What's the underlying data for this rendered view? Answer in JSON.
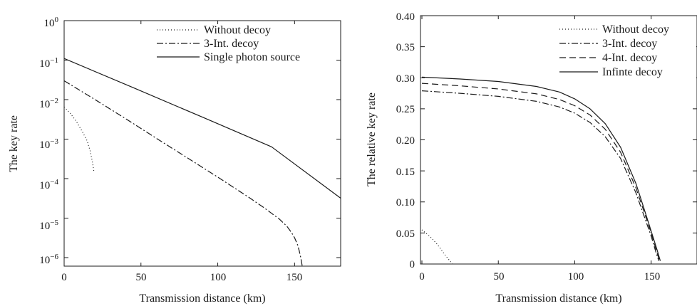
{
  "chart_data": [
    {
      "type": "line",
      "title": "",
      "xlabel": "Transmission distance (km)",
      "ylabel": "The key rate",
      "xlim": [
        0,
        180
      ],
      "ylim": [
        1e-06,
        1
      ],
      "yscale": "log",
      "xticks": [
        "0",
        "50",
        "100",
        "150"
      ],
      "yticks": [
        {
          "base": "10",
          "exp": "0"
        },
        {
          "base": "10",
          "exp": "−1"
        },
        {
          "base": "10",
          "exp": "−2"
        },
        {
          "base": "10",
          "exp": "−3"
        },
        {
          "base": "10",
          "exp": "−4"
        },
        {
          "base": "10",
          "exp": "−5"
        },
        {
          "base": "10",
          "exp": "−6"
        }
      ],
      "legend_position": "top-right",
      "series": [
        {
          "name": "Without decoy",
          "style": "dotted",
          "x": [
            0,
            4,
            8,
            12,
            15,
            17,
            18.5,
            19.5
          ],
          "y": [
            0.0065,
            0.0045,
            0.0028,
            0.0015,
            0.0009,
            0.0005,
            0.00025,
            0.00014
          ]
        },
        {
          "name": "3-Int. decoy",
          "style": "dashdot",
          "x": [
            0,
            20,
            40,
            60,
            80,
            100,
            120,
            130,
            140,
            145,
            148,
            150,
            152,
            153,
            154,
            155
          ],
          "y": [
            0.03,
            0.0101,
            0.0033,
            0.00105,
            0.00034,
            0.000109,
            3.4e-05,
            1.85e-05,
            9.5e-06,
            6.2e-06,
            4.3e-06,
            3.2e-06,
            2.1e-06,
            1.5e-06,
            1e-06,
            5.5e-07
          ]
        },
        {
          "name": "Single photon source",
          "style": "solid",
          "x": [
            0,
            45,
            90,
            135,
            180
          ],
          "y": [
            0.11,
            0.0201,
            0.0036,
            0.00064,
            3.2e-05
          ]
        }
      ]
    },
    {
      "type": "line",
      "title": "",
      "xlabel": "Transmission distance (km)",
      "ylabel": "The relative key rate",
      "xlim": [
        0,
        180
      ],
      "ylim": [
        0,
        0.4
      ],
      "xticks": [
        "0",
        "50",
        "100",
        "150"
      ],
      "yticks": [
        "0",
        "0.05",
        "0.10",
        "0.15",
        "0.20",
        "0.25",
        "0.30",
        "0.35",
        "0.40"
      ],
      "legend_position": "top-right",
      "series": [
        {
          "name": "Without decoy",
          "style": "dotted",
          "x": [
            0,
            5,
            10,
            15,
            18,
            20
          ],
          "y": [
            0.055,
            0.045,
            0.032,
            0.015,
            0.006,
            0.0
          ]
        },
        {
          "name": "3-Int. decoy",
          "style": "dashdot",
          "x": [
            0,
            25,
            50,
            75,
            90,
            100,
            110,
            120,
            130,
            140,
            145,
            150,
            153,
            155
          ],
          "y": [
            0.279,
            0.275,
            0.27,
            0.262,
            0.253,
            0.243,
            0.228,
            0.205,
            0.17,
            0.115,
            0.08,
            0.045,
            0.02,
            0.005
          ]
        },
        {
          "name": "4-Int. decoy",
          "style": "dashed",
          "x": [
            0,
            25,
            50,
            75,
            90,
            100,
            110,
            120,
            130,
            140,
            145,
            150,
            153,
            155.5
          ],
          "y": [
            0.291,
            0.287,
            0.282,
            0.274,
            0.265,
            0.255,
            0.24,
            0.217,
            0.18,
            0.123,
            0.087,
            0.05,
            0.025,
            0.005
          ]
        },
        {
          "name": "Infinte decoy",
          "style": "solid",
          "x": [
            0,
            25,
            50,
            75,
            90,
            100,
            110,
            120,
            130,
            140,
            145,
            150,
            154,
            156
          ],
          "y": [
            0.301,
            0.298,
            0.294,
            0.286,
            0.277,
            0.266,
            0.25,
            0.226,
            0.188,
            0.13,
            0.092,
            0.053,
            0.022,
            0.005
          ]
        }
      ]
    }
  ]
}
